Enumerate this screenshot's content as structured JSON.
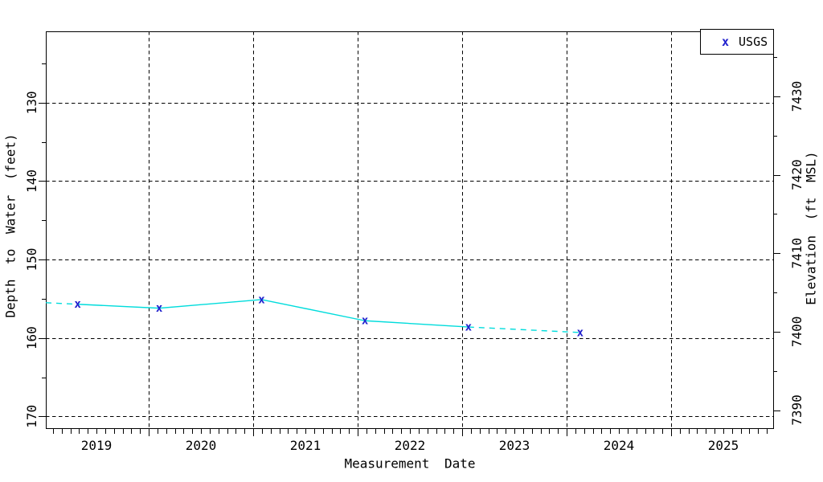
{
  "chart_data": {
    "type": "line",
    "title": "",
    "x_axis": {
      "label": "Measurement Date",
      "range_decimal_years": [
        2019.015,
        2025.977
      ],
      "grid_years": [
        2020,
        2021,
        2022,
        2023,
        2024,
        2025
      ],
      "year_labels": [
        "2019",
        "2020",
        "2021",
        "2022",
        "2023",
        "2024",
        "2025"
      ],
      "minor_ticks": "monthly"
    },
    "y_axis_left": {
      "label": "Depth to Water (feet)",
      "range": [
        120.9,
        171.5
      ],
      "major_ticks": [
        130,
        140,
        150,
        160,
        170
      ],
      "minor_step": 5,
      "increases": "downward"
    },
    "y_axis_right": {
      "label": "Elevation (ft MSL)",
      "major_ticks": [
        7430,
        7420,
        7410,
        7400,
        7390
      ],
      "minor_step": 5,
      "depth_elevation_sum": 7559.2
    },
    "grid": {
      "color": "#000000",
      "dash": [
        4.3,
        3.7
      ]
    },
    "legend": {
      "marker_char": "x",
      "label": "USGS",
      "marker_color": "#2121cd"
    },
    "series": [
      {
        "name": "USGS",
        "line_color": "#00dcdc",
        "marker_char": "x",
        "marker_color": "#2121cd",
        "points": [
          {
            "decimal_year": 2019.32,
            "depth_ft": 155.7,
            "elevation_ft": 7403.5
          },
          {
            "decimal_year": 2020.1,
            "depth_ft": 156.2,
            "elevation_ft": 7403.0
          },
          {
            "decimal_year": 2021.08,
            "depth_ft": 155.1,
            "elevation_ft": 7404.1
          },
          {
            "decimal_year": 2022.07,
            "depth_ft": 157.8,
            "elevation_ft": 7401.4
          },
          {
            "decimal_year": 2023.06,
            "depth_ft": 158.6,
            "elevation_ft": 7400.6
          },
          {
            "decimal_year": 2024.13,
            "depth_ft": 159.3,
            "elevation_ft": 7399.9
          }
        ],
        "leading_dash_start": {
          "decimal_year": 2019.015,
          "depth_ft": 155.5
        },
        "segment_styles": [
          "solid",
          "solid",
          "solid",
          "solid",
          "dashed"
        ]
      }
    ]
  }
}
